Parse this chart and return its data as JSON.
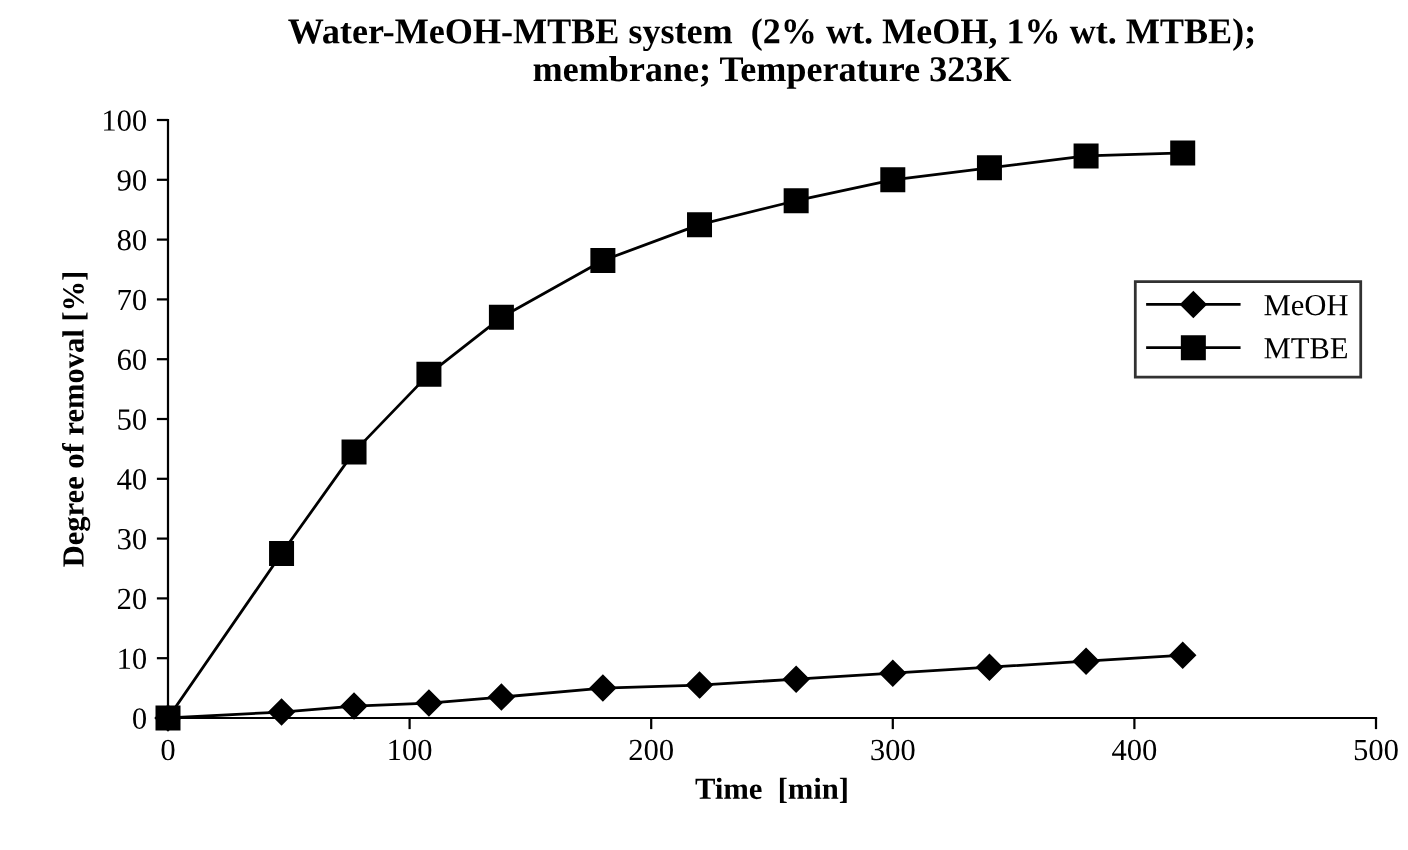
{
  "chart_data": {
    "type": "line",
    "title": "Water-MeOH-MTBE system  (2% wt. MeOH, 1% wt. MTBE);\nmembrane; Temperature 323K",
    "xlabel": "Time  [min]",
    "ylabel": "Degree of removal [%]",
    "x": [
      0,
      47,
      77,
      108,
      138,
      180,
      220,
      260,
      300,
      340,
      380,
      420
    ],
    "series": [
      {
        "name": "MeOH",
        "color": "#000000",
        "marker": "diamond",
        "values": [
          0,
          1,
          2,
          2.5,
          3.5,
          5,
          5.5,
          6.5,
          7.5,
          8.5,
          9.5,
          10.5
        ]
      },
      {
        "name": "MTBE",
        "color": "#000000",
        "marker": "square",
        "values": [
          0,
          27.5,
          44.5,
          57.5,
          67,
          76.5,
          82.5,
          86.5,
          90,
          92,
          94,
          94.5
        ]
      }
    ],
    "xlim": [
      0,
      500
    ],
    "xticks": [
      0,
      100,
      200,
      300,
      400,
      500
    ],
    "ylim": [
      0,
      100
    ],
    "yticks": [
      0,
      10,
      20,
      30,
      40,
      50,
      60,
      70,
      80,
      90,
      100
    ],
    "legend": "right",
    "grid": false,
    "line_style": "solid"
  }
}
